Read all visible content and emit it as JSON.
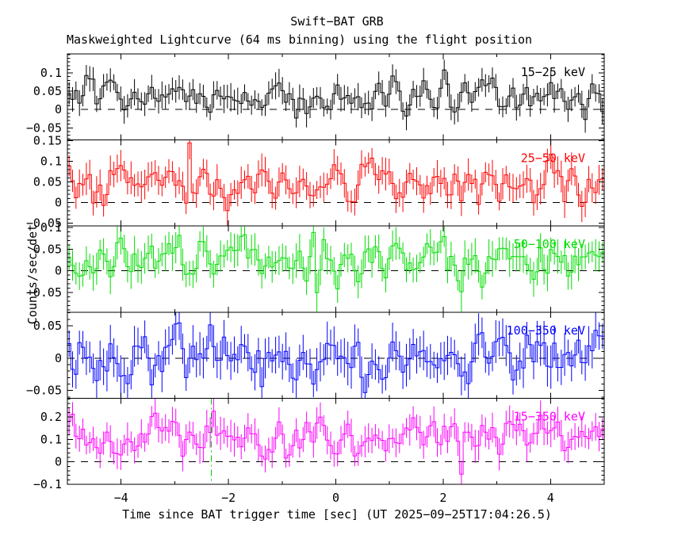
{
  "chart_data": {
    "type": "line",
    "variant": "stepped-histogram-with-errorbars",
    "title": "Swift−BAT GRB",
    "subtitle": "Maskweighted Lightcurve (64 ms binning) using the flight position",
    "xlabel": "Time since BAT trigger time [sec] (UT 2025−09−25T17:04:26.5)",
    "ylabel": "Counts/sec/det",
    "xlim": [
      -5,
      5
    ],
    "x_major_ticks": [
      -4,
      -2,
      0,
      2,
      4
    ],
    "x_minor_step": 1,
    "bin_width_sec": 0.064,
    "n_bins": 156,
    "grid": false,
    "frame_color": "#000000",
    "zero_line": {
      "value": 0,
      "style": "dashed",
      "color": "#000000"
    },
    "trigger_marker": {
      "t": -2.32,
      "color": "#00cc00",
      "style": "dash-dot",
      "panel": "15−350 keV"
    },
    "panels": [
      {
        "label": "15−25 keV",
        "color": "#000000",
        "ylim": [
          -0.083,
          0.152
        ],
        "yticks": [
          -0.05,
          0,
          0.05,
          0.1
        ],
        "y_minor_step": 0.01,
        "mean": 0.04,
        "sigma": 0.026,
        "err": 0.03,
        "seed": 101,
        "features": []
      },
      {
        "label": "25−50 keV",
        "color": "#ff0000",
        "ylim": [
          -0.057,
          0.152
        ],
        "yticks": [
          -0.05,
          0,
          0.05,
          0.1,
          0.15
        ],
        "y_minor_step": 0.01,
        "mean": 0.042,
        "sigma": 0.03,
        "err": 0.031,
        "seed": 202,
        "features": [
          {
            "t": -2.78,
            "v": 0.145,
            "err": 0.04
          }
        ]
      },
      {
        "label": "50−100 keV",
        "color": "#00dd00",
        "ylim": [
          -0.095,
          0.103
        ],
        "yticks": [
          -0.05,
          0,
          0.05,
          0.1
        ],
        "y_minor_step": 0.01,
        "mean": 0.028,
        "sigma": 0.03,
        "err": 0.032,
        "seed": 303,
        "features": [
          {
            "t": -0.38,
            "v": -0.05,
            "err": 0.045
          },
          {
            "t": 2.33,
            "v": -0.048,
            "err": 0.05
          }
        ]
      },
      {
        "label": "100−350 keV",
        "color": "#0000ff",
        "ylim": [
          -0.062,
          0.071
        ],
        "yticks": [
          -0.05,
          0,
          0.05
        ],
        "y_minor_step": 0.01,
        "mean": 0.003,
        "sigma": 0.021,
        "err": 0.026,
        "seed": 404,
        "features": [
          {
            "t": -1.4,
            "v": -0.044,
            "err": 0.03
          }
        ]
      },
      {
        "label": "15−350 keV",
        "color": "#ff00ff",
        "ylim": [
          -0.1,
          0.283
        ],
        "yticks": [
          -0.1,
          0,
          0.1,
          0.2
        ],
        "y_minor_step": 0.02,
        "mean": 0.112,
        "sigma": 0.048,
        "err": 0.058,
        "seed": 505,
        "features": [
          {
            "t": -2.3,
            "v": 0.225,
            "err": 0.07
          },
          {
            "t": 2.3,
            "v": -0.055,
            "err": 0.06
          }
        ]
      }
    ]
  }
}
